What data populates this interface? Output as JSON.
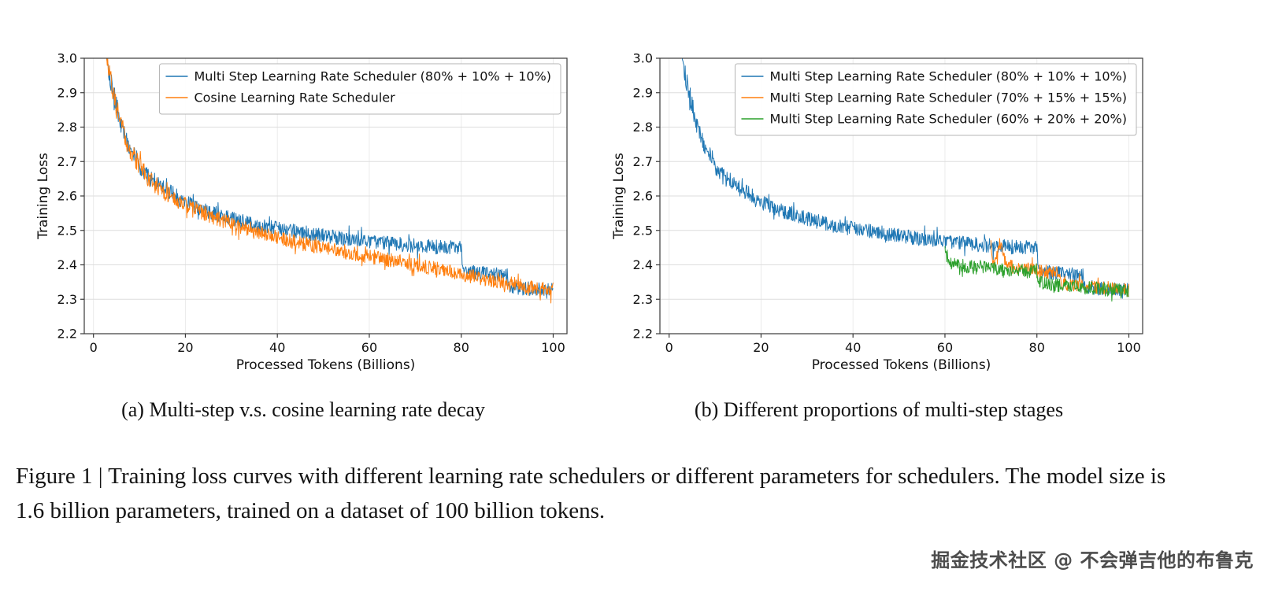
{
  "figure": {
    "caption": "Figure 1 | Training loss curves with different learning rate schedulers or different parameters for schedulers. The model size is 1.6 billion parameters, trained on a dataset of 100 billion tokens.",
    "watermark": "掘金技术社区 @ 不会弹吉他的布鲁克"
  },
  "chart_data": [
    {
      "id": "a",
      "type": "line",
      "subcaption": "(a)  Multi-step v.s. cosine learning rate decay",
      "xlabel": "Processed Tokens (Billions)",
      "ylabel": "Training Loss",
      "xlim": [
        -2,
        103
      ],
      "ylim": [
        2.2,
        3.0
      ],
      "xticks": [
        0,
        20,
        40,
        60,
        80,
        100
      ],
      "yticks": [
        2.2,
        2.3,
        2.4,
        2.5,
        2.6,
        2.7,
        2.8,
        2.9,
        3.0
      ],
      "grid": true,
      "legend_position": "upper right",
      "series": [
        {
          "name": "Multi Step Learning Rate Scheduler (80% + 10% + 10%)",
          "color": "#1f77b4",
          "noise_band": 0.021,
          "seed": 101,
          "trend_points": [
            [
              2.5,
              3.07
            ],
            [
              3,
              3.0
            ],
            [
              4,
              2.92
            ],
            [
              5,
              2.86
            ],
            [
              6,
              2.81
            ],
            [
              7,
              2.77
            ],
            [
              8,
              2.74
            ],
            [
              10,
              2.69
            ],
            [
              12,
              2.655
            ],
            [
              15,
              2.625
            ],
            [
              18,
              2.6
            ],
            [
              20,
              2.585
            ],
            [
              25,
              2.555
            ],
            [
              30,
              2.535
            ],
            [
              35,
              2.515
            ],
            [
              40,
              2.505
            ],
            [
              45,
              2.495
            ],
            [
              50,
              2.485
            ],
            [
              55,
              2.475
            ],
            [
              60,
              2.47
            ],
            [
              65,
              2.462
            ],
            [
              70,
              2.455
            ],
            [
              75,
              2.452
            ],
            [
              80,
              2.45
            ],
            [
              80.4,
              2.383
            ],
            [
              83,
              2.378
            ],
            [
              86,
              2.373
            ],
            [
              90,
              2.368
            ],
            [
              90.4,
              2.338
            ],
            [
              93,
              2.333
            ],
            [
              96,
              2.33
            ],
            [
              100,
              2.326
            ]
          ]
        },
        {
          "name": "Cosine Learning Rate Scheduler",
          "color": "#ff7f0e",
          "noise_band": 0.021,
          "seed": 202,
          "trend_points": [
            [
              2.5,
              3.07
            ],
            [
              3,
              3.0
            ],
            [
              4,
              2.92
            ],
            [
              5,
              2.855
            ],
            [
              6,
              2.805
            ],
            [
              7,
              2.765
            ],
            [
              8,
              2.735
            ],
            [
              10,
              2.685
            ],
            [
              12,
              2.65
            ],
            [
              15,
              2.615
            ],
            [
              18,
              2.59
            ],
            [
              20,
              2.575
            ],
            [
              25,
              2.545
            ],
            [
              30,
              2.52
            ],
            [
              35,
              2.5
            ],
            [
              40,
              2.478
            ],
            [
              45,
              2.462
            ],
            [
              50,
              2.448
            ],
            [
              55,
              2.437
            ],
            [
              60,
              2.425
            ],
            [
              65,
              2.413
            ],
            [
              70,
              2.4
            ],
            [
              75,
              2.388
            ],
            [
              80,
              2.373
            ],
            [
              85,
              2.36
            ],
            [
              90,
              2.347
            ],
            [
              95,
              2.337
            ],
            [
              100,
              2.328
            ]
          ]
        }
      ]
    },
    {
      "id": "b",
      "type": "line",
      "subcaption": "(b)  Different proportions of multi-step stages",
      "xlabel": "Processed Tokens (Billions)",
      "ylabel": "Training Loss",
      "xlim": [
        -2,
        103
      ],
      "ylim": [
        2.2,
        3.0
      ],
      "xticks": [
        0,
        20,
        40,
        60,
        80,
        100
      ],
      "yticks": [
        2.2,
        2.3,
        2.4,
        2.5,
        2.6,
        2.7,
        2.8,
        2.9,
        3.0
      ],
      "grid": true,
      "legend_position": "upper right",
      "series": [
        {
          "name": "Multi Step Learning Rate Scheduler (80% + 10% + 10%)",
          "color": "#1f77b4",
          "noise_band": 0.021,
          "seed": 101,
          "trend_points": [
            [
              2.5,
              3.07
            ],
            [
              3,
              3.0
            ],
            [
              4,
              2.92
            ],
            [
              5,
              2.86
            ],
            [
              6,
              2.81
            ],
            [
              7,
              2.77
            ],
            [
              8,
              2.74
            ],
            [
              10,
              2.69
            ],
            [
              12,
              2.655
            ],
            [
              15,
              2.625
            ],
            [
              18,
              2.6
            ],
            [
              20,
              2.585
            ],
            [
              25,
              2.555
            ],
            [
              30,
              2.535
            ],
            [
              35,
              2.515
            ],
            [
              40,
              2.505
            ],
            [
              45,
              2.495
            ],
            [
              50,
              2.485
            ],
            [
              55,
              2.475
            ],
            [
              60,
              2.47
            ],
            [
              65,
              2.462
            ],
            [
              70,
              2.455
            ],
            [
              75,
              2.452
            ],
            [
              80,
              2.45
            ],
            [
              80.4,
              2.383
            ],
            [
              83,
              2.378
            ],
            [
              86,
              2.373
            ],
            [
              90,
              2.368
            ],
            [
              90.4,
              2.338
            ],
            [
              93,
              2.333
            ],
            [
              96,
              2.33
            ],
            [
              100,
              2.326
            ]
          ]
        },
        {
          "name": "Multi Step Learning Rate Scheduler (70% + 15% + 15%)",
          "color": "#ff7f0e",
          "noise_band": 0.019,
          "seed": 303,
          "trend_points": [
            [
              70,
              2.455
            ],
            [
              70.5,
              2.405
            ],
            [
              71.3,
              2.43
            ],
            [
              72,
              2.465
            ],
            [
              72.6,
              2.425
            ],
            [
              73.5,
              2.4
            ],
            [
              75,
              2.392
            ],
            [
              78,
              2.387
            ],
            [
              81,
              2.383
            ],
            [
              84,
              2.378
            ],
            [
              85,
              2.376
            ],
            [
              85.5,
              2.346
            ],
            [
              88,
              2.34
            ],
            [
              91,
              2.336
            ],
            [
              94,
              2.332
            ],
            [
              97,
              2.33
            ],
            [
              100,
              2.327
            ]
          ]
        },
        {
          "name": "Multi Step Learning Rate Scheduler (60% + 20% + 20%)",
          "color": "#2ca02c",
          "noise_band": 0.02,
          "seed": 404,
          "trend_points": [
            [
              60,
              2.46
            ],
            [
              60.5,
              2.408
            ],
            [
              62,
              2.4
            ],
            [
              64,
              2.397
            ],
            [
              67,
              2.392
            ],
            [
              70,
              2.389
            ],
            [
              73,
              2.386
            ],
            [
              76,
              2.383
            ],
            [
              80,
              2.38
            ],
            [
              80.5,
              2.347
            ],
            [
              83,
              2.342
            ],
            [
              86,
              2.338
            ],
            [
              90,
              2.334
            ],
            [
              94,
              2.33
            ],
            [
              100,
              2.324
            ]
          ]
        }
      ]
    }
  ]
}
